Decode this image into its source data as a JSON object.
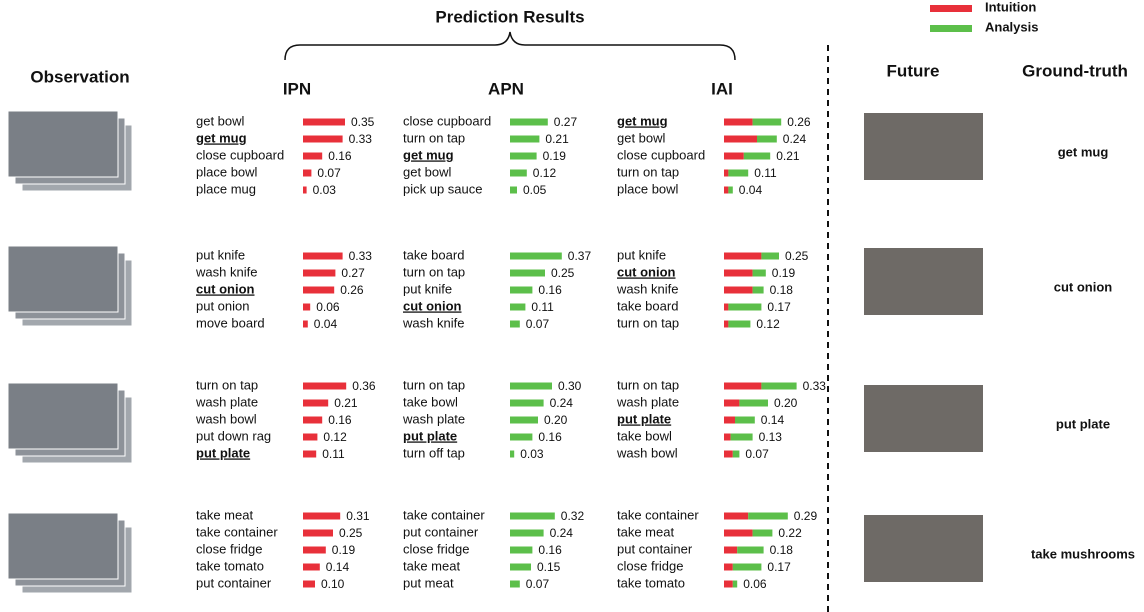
{
  "title": "Prediction Results",
  "legend": [
    {
      "name": "Intuition",
      "color": "#e8303a"
    },
    {
      "name": "Analysis",
      "color": "#5cbf4a"
    }
  ],
  "headers": {
    "observation": "Observation",
    "future": "Future",
    "ground_truth": "Ground-truth"
  },
  "methods": [
    "IPN",
    "APN",
    "IAI"
  ],
  "rows": [
    {
      "ground_truth": "get mug",
      "ipn": {
        "actions": [
          "get bowl",
          "get mug",
          "close cupboard",
          "place bowl",
          "place mug"
        ],
        "values": [
          0.35,
          0.33,
          0.16,
          0.07,
          0.03
        ],
        "value_labels": [
          "0.35",
          "0.33",
          "0.16",
          "0.07",
          "0.03"
        ],
        "correct": 1
      },
      "apn": {
        "actions": [
          "close cupboard",
          "turn on tap",
          "get mug",
          "get bowl",
          "pick up sauce"
        ],
        "values": [
          0.27,
          0.21,
          0.19,
          0.12,
          0.05
        ],
        "value_labels": [
          "0.27",
          "0.21",
          "0.19",
          "0.12",
          "0.05"
        ],
        "correct": 2
      },
      "iai": {
        "actions": [
          "get mug",
          "get bowl",
          "close cupboard",
          "turn on tap",
          "place bowl"
        ],
        "values": [
          0.26,
          0.24,
          0.21,
          0.11,
          0.04
        ],
        "value_labels": [
          "0.26",
          "0.24",
          "0.21",
          "0.11",
          "0.04"
        ],
        "intuition": [
          0.13,
          0.15,
          0.09,
          0.02,
          0.02
        ],
        "analysis": [
          0.13,
          0.09,
          0.12,
          0.09,
          0.02
        ],
        "correct": 0
      }
    },
    {
      "ground_truth": "cut onion",
      "ipn": {
        "actions": [
          "put knife",
          "wash knife",
          "cut onion",
          "put onion",
          "move board"
        ],
        "values": [
          0.33,
          0.27,
          0.26,
          0.06,
          0.04
        ],
        "value_labels": [
          "0.33",
          "0.27",
          "0.26",
          "0.06",
          "0.04"
        ],
        "correct": 2
      },
      "apn": {
        "actions": [
          "take board",
          "turn on tap",
          "put knife",
          "cut onion",
          "wash knife"
        ],
        "values": [
          0.37,
          0.25,
          0.16,
          0.11,
          0.07
        ],
        "value_labels": [
          "0.37",
          "0.25",
          "0.16",
          "0.11",
          "0.07"
        ],
        "correct": 3
      },
      "iai": {
        "actions": [
          "put knife",
          "cut onion",
          "wash knife",
          "take board",
          "turn on tap"
        ],
        "values": [
          0.25,
          0.19,
          0.18,
          0.17,
          0.12
        ],
        "value_labels": [
          "0.25",
          "0.19",
          "0.18",
          "0.17",
          "0.12"
        ],
        "intuition": [
          0.17,
          0.13,
          0.13,
          0.02,
          0.02
        ],
        "analysis": [
          0.08,
          0.06,
          0.05,
          0.15,
          0.1
        ],
        "correct": 1
      }
    },
    {
      "ground_truth": "put plate",
      "ipn": {
        "actions": [
          "turn on tap",
          "wash plate",
          "wash bowl",
          "put down rag",
          "put plate"
        ],
        "values": [
          0.36,
          0.21,
          0.16,
          0.12,
          0.11
        ],
        "value_labels": [
          "0.36",
          "0.21",
          "0.16",
          "0.12",
          "0.11"
        ],
        "correct": 4
      },
      "apn": {
        "actions": [
          "turn on tap",
          "take bowl",
          "wash plate",
          "put plate",
          "turn off tap"
        ],
        "values": [
          0.3,
          0.24,
          0.2,
          0.16,
          0.03
        ],
        "value_labels": [
          "0.30",
          "0.24",
          "0.20",
          "0.16",
          "0.03"
        ],
        "correct": 3
      },
      "iai": {
        "actions": [
          "turn on tap",
          "wash plate",
          "put plate",
          "take bowl",
          "wash bowl"
        ],
        "values": [
          0.33,
          0.2,
          0.14,
          0.13,
          0.07
        ],
        "value_labels": [
          "0.33",
          "0.20",
          "0.14",
          "0.13",
          "0.07"
        ],
        "intuition": [
          0.17,
          0.07,
          0.05,
          0.03,
          0.04
        ],
        "analysis": [
          0.16,
          0.13,
          0.09,
          0.1,
          0.03
        ],
        "correct": 2
      }
    },
    {
      "ground_truth": "take mushrooms",
      "ipn": {
        "actions": [
          "take meat",
          "take container",
          "close fridge",
          "take tomato",
          "put container"
        ],
        "values": [
          0.31,
          0.25,
          0.19,
          0.14,
          0.1
        ],
        "value_labels": [
          "0.31",
          "0.25",
          "0.19",
          "0.14",
          "0.10"
        ]
      },
      "apn": {
        "actions": [
          "take container",
          "put container",
          "close fridge",
          "take meat",
          "put meat"
        ],
        "values": [
          0.32,
          0.24,
          0.16,
          0.15,
          0.07
        ],
        "value_labels": [
          "0.32",
          "0.24",
          "0.16",
          "0.15",
          "0.07"
        ]
      },
      "iai": {
        "actions": [
          "take container",
          "take meat",
          "put container",
          "close fridge",
          "take tomato"
        ],
        "values": [
          0.29,
          0.22,
          0.18,
          0.17,
          0.06
        ],
        "value_labels": [
          "0.29",
          "0.22",
          "0.18",
          "0.17",
          "0.06"
        ],
        "intuition": [
          0.11,
          0.13,
          0.06,
          0.04,
          0.04
        ],
        "analysis": [
          0.18,
          0.09,
          0.12,
          0.13,
          0.02
        ]
      }
    }
  ]
}
